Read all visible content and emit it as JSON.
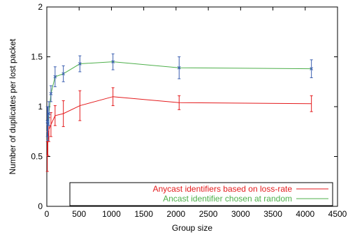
{
  "chart_data": {
    "type": "line",
    "xlabel": "Group size",
    "ylabel": "Number of duplicates per lost packet",
    "xlim": [
      0,
      4500
    ],
    "ylim": [
      0,
      2
    ],
    "x_ticks": [
      0,
      500,
      1000,
      1500,
      2000,
      2500,
      3000,
      3500,
      4000,
      4500
    ],
    "y_ticks": [
      0,
      0.5,
      1,
      1.5,
      2
    ],
    "x_tick_labels": [
      "0",
      "500",
      "1000",
      "1500",
      "2000",
      "2500",
      "3000",
      "3500",
      "4000",
      "4500"
    ],
    "y_tick_labels": [
      "0",
      "0.5",
      "1",
      "1.5",
      "2"
    ],
    "legend_position": "bottom-right",
    "grid": false,
    "series": [
      {
        "name": "Anycast identifiers based on loss-rate",
        "color": "#e41a1c",
        "errorbar_color": "#e41a1c",
        "marker": "none",
        "points": [
          {
            "x": 8,
            "y": 0.5,
            "err": 0.15
          },
          {
            "x": 16,
            "y": 0.63,
            "err": 0.12
          },
          {
            "x": 32,
            "y": 0.77,
            "err": 0.12
          },
          {
            "x": 64,
            "y": 0.82,
            "err": 0.12
          },
          {
            "x": 128,
            "y": 0.91,
            "err": 0.1
          },
          {
            "x": 256,
            "y": 0.93,
            "err": 0.13
          },
          {
            "x": 512,
            "y": 1.01,
            "err": 0.15
          },
          {
            "x": 1024,
            "y": 1.1,
            "err": 0.09
          },
          {
            "x": 2048,
            "y": 1.04,
            "err": 0.07
          },
          {
            "x": 4096,
            "y": 1.03,
            "err": 0.08
          }
        ]
      },
      {
        "name": "Ancast identifier chosen at random",
        "color": "#4daf4a",
        "errorbar_color": "#3b5fb0",
        "marker": "x",
        "points": [
          {
            "x": 8,
            "y": 0.85,
            "err": 0.15
          },
          {
            "x": 16,
            "y": 0.83,
            "err": 0.17
          },
          {
            "x": 32,
            "y": 0.93,
            "err": 0.12
          },
          {
            "x": 64,
            "y": 1.13,
            "err": 0.08
          },
          {
            "x": 128,
            "y": 1.3,
            "err": 0.1
          },
          {
            "x": 256,
            "y": 1.33,
            "err": 0.08
          },
          {
            "x": 512,
            "y": 1.43,
            "err": 0.08
          },
          {
            "x": 1024,
            "y": 1.45,
            "err": 0.08
          },
          {
            "x": 2048,
            "y": 1.39,
            "err": 0.11
          },
          {
            "x": 4096,
            "y": 1.38,
            "err": 0.09
          }
        ]
      }
    ]
  }
}
